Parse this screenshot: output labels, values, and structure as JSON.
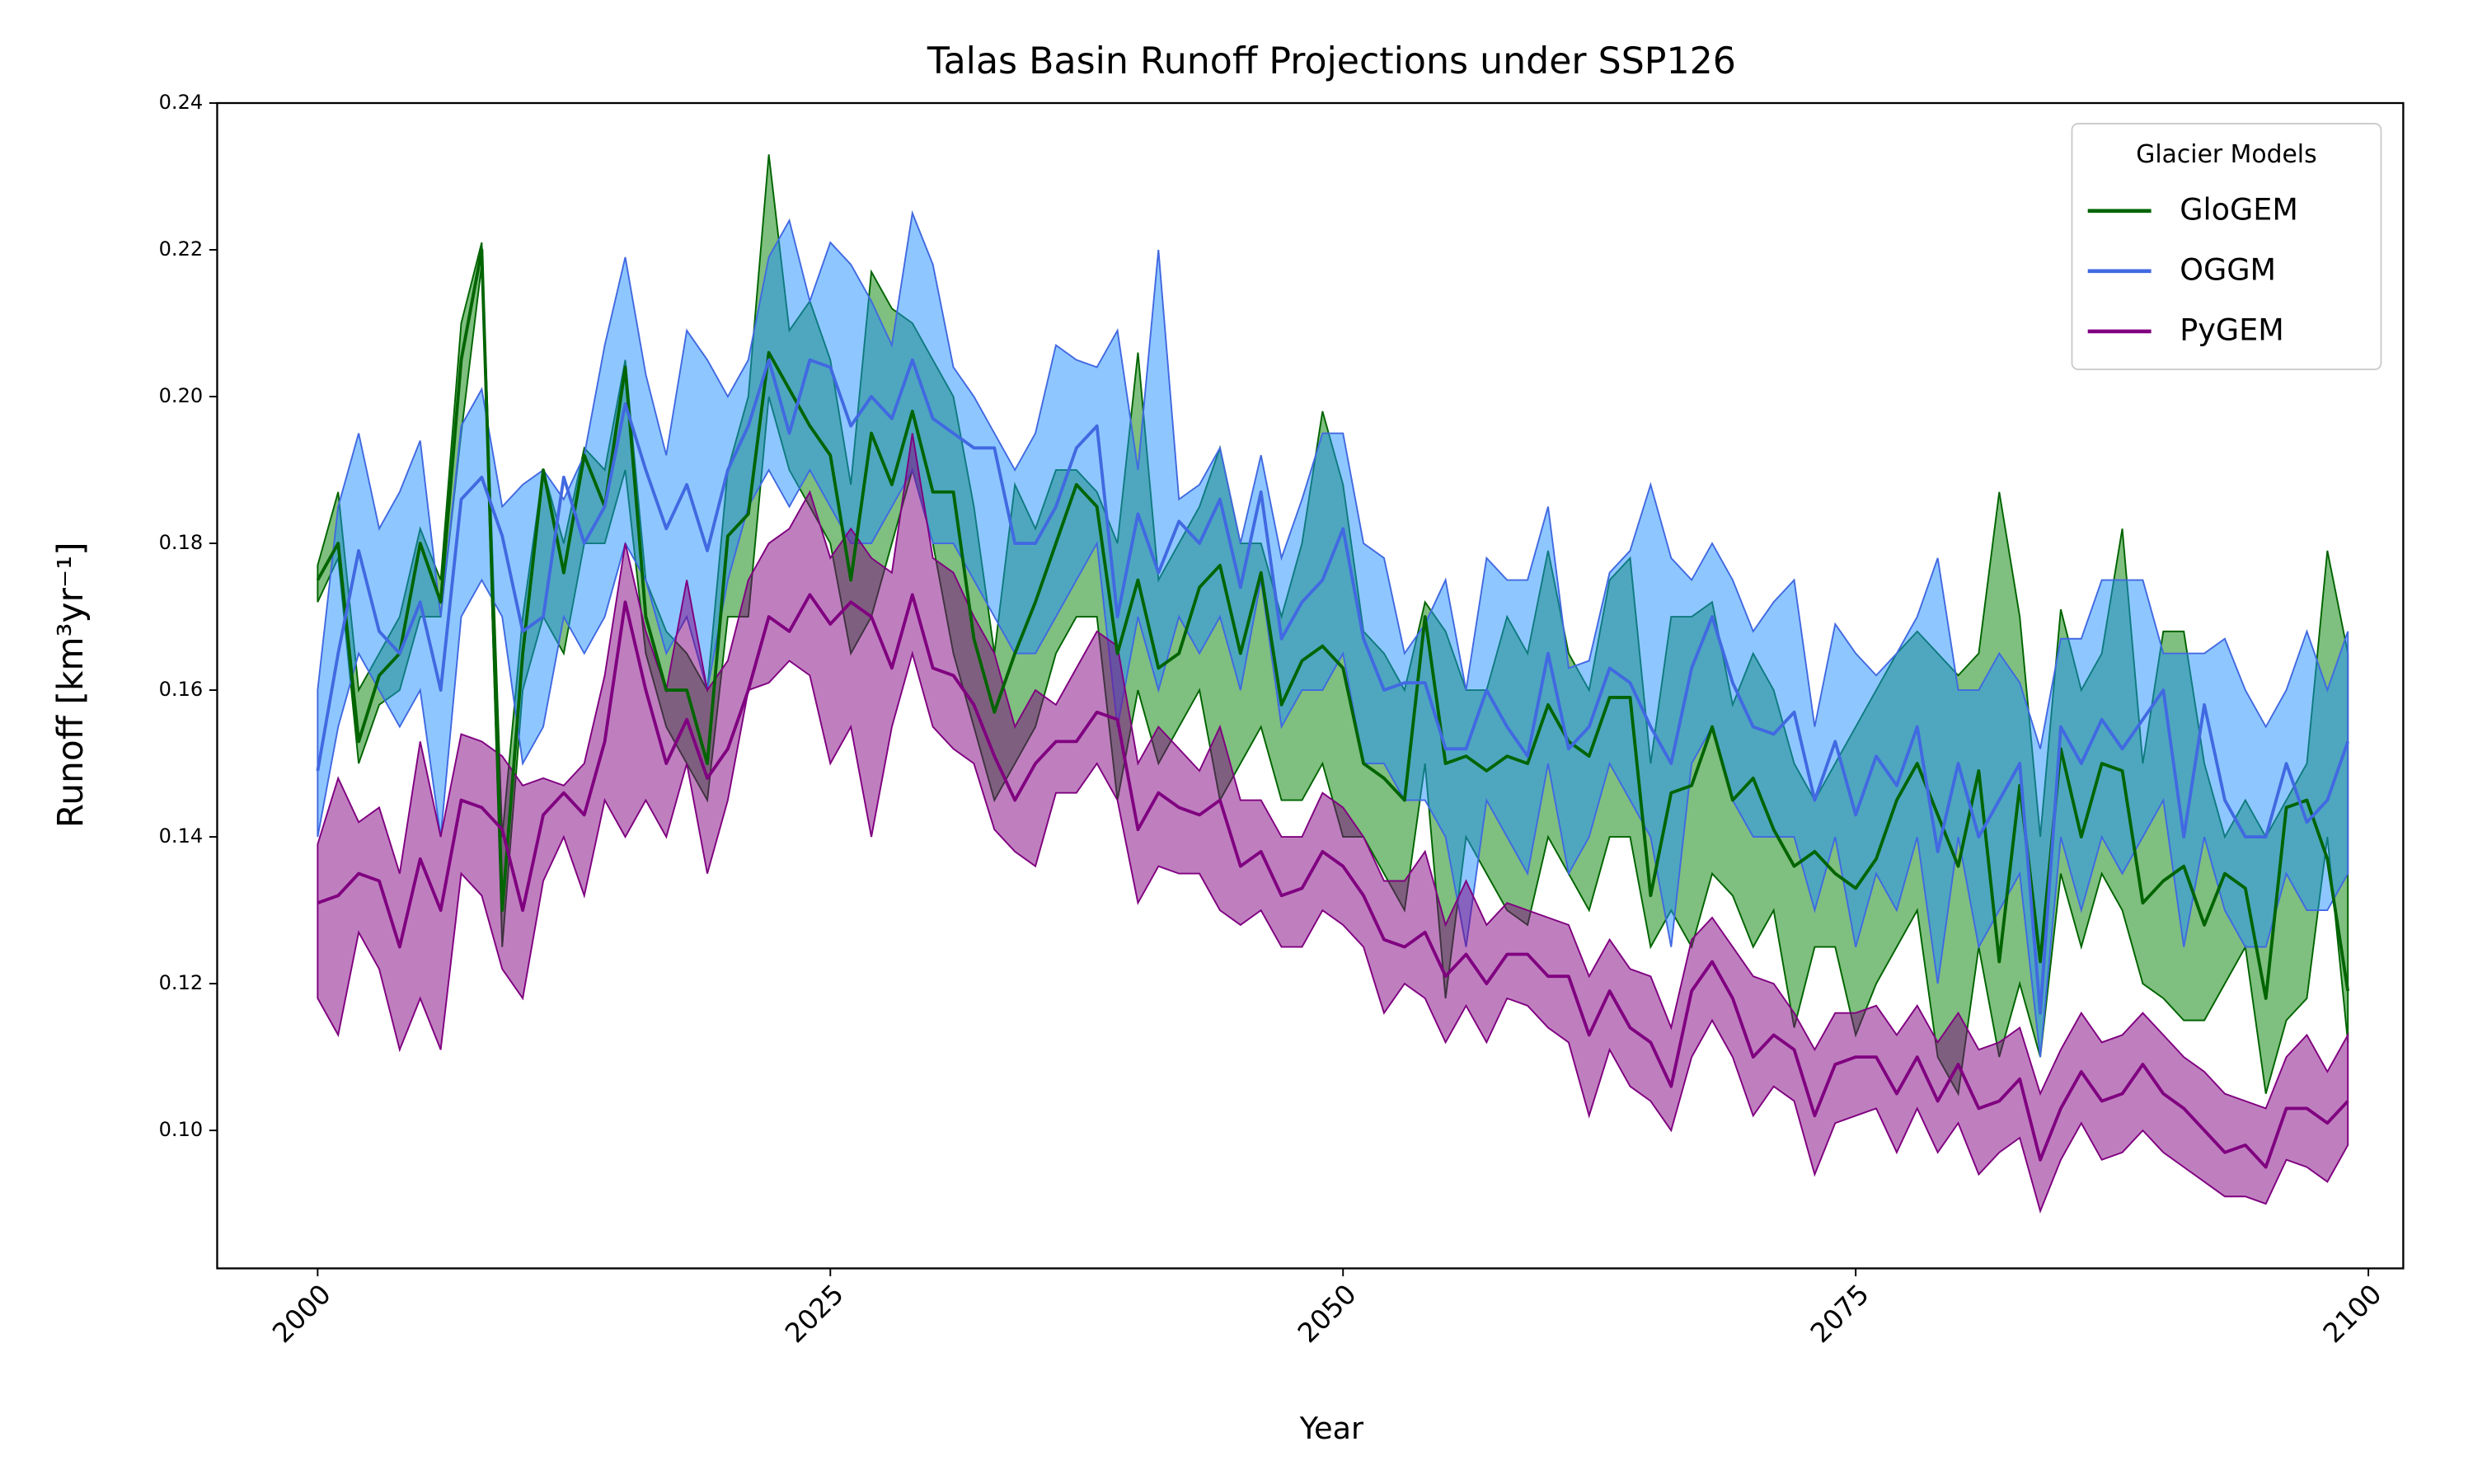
{
  "chart_data": {
    "type": "band-line",
    "title": "Talas Basin Runoff Projections under SSP126",
    "xlabel": "Year",
    "ylabel": "Runoff [km³yr⁻¹]",
    "legend_title": "Glacier Models",
    "legend_loc": "upper right",
    "xlim": [
      1995.1,
      2101.7
    ],
    "ylim": [
      0.0812,
      0.24
    ],
    "xticks": [
      2000,
      2025,
      2050,
      2075,
      2100
    ],
    "yticks": [
      {
        "value": 0.1,
        "label": "0.10"
      },
      0.12,
      0.14,
      0.16,
      0.18,
      {
        "value": 0.2,
        "label": "0.20"
      },
      0.22,
      0.24
    ],
    "fill_opacity": 0.5,
    "x": [
      2000,
      2001,
      2002,
      2003,
      2004,
      2005,
      2006,
      2007,
      2008,
      2009,
      2010,
      2011,
      2012,
      2013,
      2014,
      2015,
      2016,
      2017,
      2018,
      2019,
      2020,
      2021,
      2022,
      2023,
      2024,
      2025,
      2026,
      2027,
      2028,
      2029,
      2030,
      2031,
      2032,
      2033,
      2034,
      2035,
      2036,
      2037,
      2038,
      2039,
      2040,
      2041,
      2042,
      2043,
      2044,
      2045,
      2046,
      2047,
      2048,
      2049,
      2050,
      2051,
      2052,
      2053,
      2054,
      2055,
      2056,
      2057,
      2058,
      2059,
      2060,
      2061,
      2062,
      2063,
      2064,
      2065,
      2066,
      2067,
      2068,
      2069,
      2070,
      2071,
      2072,
      2073,
      2074,
      2075,
      2076,
      2077,
      2078,
      2079,
      2080,
      2081,
      2082,
      2083,
      2084,
      2085,
      2086,
      2087,
      2088,
      2089,
      2090,
      2091,
      2092,
      2093,
      2094,
      2095,
      2096,
      2097,
      2098,
      2099
    ],
    "series": [
      {
        "name": "GloGEM",
        "color": "#006400",
        "fill_color": "#008000",
        "values": [
          0.175,
          0.18,
          0.153,
          0.162,
          0.165,
          0.18,
          0.172,
          0.205,
          0.22,
          0.13,
          0.165,
          0.19,
          0.176,
          0.192,
          0.185,
          0.204,
          0.17,
          0.16,
          0.16,
          0.15,
          0.181,
          0.184,
          0.206,
          0.201,
          0.196,
          0.192,
          0.175,
          0.195,
          0.188,
          0.198,
          0.187,
          0.187,
          0.167,
          0.157,
          0.165,
          0.172,
          0.18,
          0.188,
          0.185,
          0.165,
          0.175,
          0.163,
          0.165,
          0.174,
          0.177,
          0.165,
          0.176,
          0.158,
          0.164,
          0.166,
          0.163,
          0.15,
          0.148,
          0.145,
          0.17,
          0.15,
          0.151,
          0.149,
          0.151,
          0.15,
          0.158,
          0.153,
          0.151,
          0.159,
          0.159,
          0.132,
          0.146,
          0.147,
          0.155,
          0.145,
          0.148,
          0.141,
          0.136,
          0.138,
          0.135,
          0.133,
          0.137,
          0.145,
          0.15,
          0.143,
          0.136,
          0.149,
          0.123,
          0.147,
          0.123,
          0.152,
          0.14,
          0.15,
          0.149,
          0.131,
          0.134,
          0.136,
          0.128,
          0.135,
          0.133,
          0.118,
          0.144,
          0.145,
          0.137,
          0.119
        ],
        "upper": [
          0.177,
          0.187,
          0.16,
          0.165,
          0.17,
          0.182,
          0.175,
          0.21,
          0.221,
          0.14,
          0.17,
          0.19,
          0.18,
          0.193,
          0.19,
          0.205,
          0.175,
          0.168,
          0.165,
          0.16,
          0.19,
          0.2,
          0.233,
          0.209,
          0.213,
          0.205,
          0.188,
          0.217,
          0.212,
          0.21,
          0.205,
          0.2,
          0.185,
          0.165,
          0.188,
          0.182,
          0.19,
          0.19,
          0.187,
          0.18,
          0.206,
          0.175,
          0.18,
          0.185,
          0.193,
          0.18,
          0.18,
          0.17,
          0.18,
          0.198,
          0.188,
          0.168,
          0.165,
          0.16,
          0.172,
          0.168,
          0.16,
          0.16,
          0.17,
          0.165,
          0.179,
          0.165,
          0.16,
          0.175,
          0.178,
          0.15,
          0.17,
          0.17,
          0.172,
          0.158,
          0.165,
          0.16,
          0.15,
          0.145,
          0.15,
          0.155,
          0.16,
          0.165,
          0.168,
          0.165,
          0.162,
          0.165,
          0.187,
          0.17,
          0.14,
          0.171,
          0.16,
          0.165,
          0.182,
          0.15,
          0.168,
          0.168,
          0.15,
          0.14,
          0.145,
          0.14,
          0.145,
          0.15,
          0.179,
          0.165
        ],
        "lower": [
          0.172,
          0.178,
          0.15,
          0.158,
          0.16,
          0.17,
          0.17,
          0.195,
          0.218,
          0.125,
          0.16,
          0.17,
          0.165,
          0.18,
          0.18,
          0.19,
          0.165,
          0.155,
          0.15,
          0.145,
          0.17,
          0.17,
          0.2,
          0.19,
          0.185,
          0.18,
          0.165,
          0.17,
          0.18,
          0.19,
          0.18,
          0.165,
          0.155,
          0.145,
          0.15,
          0.155,
          0.165,
          0.17,
          0.17,
          0.145,
          0.16,
          0.15,
          0.155,
          0.16,
          0.145,
          0.15,
          0.155,
          0.145,
          0.145,
          0.15,
          0.14,
          0.14,
          0.135,
          0.13,
          0.15,
          0.118,
          0.14,
          0.135,
          0.13,
          0.128,
          0.14,
          0.135,
          0.13,
          0.14,
          0.14,
          0.125,
          0.13,
          0.125,
          0.135,
          0.132,
          0.125,
          0.13,
          0.114,
          0.125,
          0.125,
          0.113,
          0.12,
          0.125,
          0.13,
          0.11,
          0.105,
          0.125,
          0.11,
          0.12,
          0.11,
          0.135,
          0.125,
          0.135,
          0.13,
          0.12,
          0.118,
          0.115,
          0.115,
          0.12,
          0.125,
          0.105,
          0.115,
          0.118,
          0.14,
          0.112
        ]
      },
      {
        "name": "OGGM",
        "color": "#4169e1",
        "fill_color": "#1e90ff",
        "values": [
          0.149,
          0.165,
          0.179,
          0.168,
          0.165,
          0.172,
          0.16,
          0.186,
          0.189,
          0.181,
          0.168,
          0.17,
          0.189,
          0.18,
          0.185,
          0.199,
          0.19,
          0.182,
          0.188,
          0.179,
          0.19,
          0.196,
          0.205,
          0.195,
          0.205,
          0.204,
          0.196,
          0.2,
          0.197,
          0.205,
          0.197,
          0.195,
          0.193,
          0.193,
          0.18,
          0.18,
          0.185,
          0.193,
          0.196,
          0.17,
          0.184,
          0.176,
          0.183,
          0.18,
          0.186,
          0.174,
          0.187,
          0.167,
          0.172,
          0.175,
          0.182,
          0.167,
          0.16,
          0.161,
          0.161,
          0.152,
          0.152,
          0.16,
          0.155,
          0.151,
          0.165,
          0.152,
          0.155,
          0.163,
          0.161,
          0.155,
          0.15,
          0.163,
          0.17,
          0.161,
          0.155,
          0.154,
          0.157,
          0.145,
          0.153,
          0.143,
          0.151,
          0.147,
          0.155,
          0.138,
          0.15,
          0.14,
          0.145,
          0.15,
          0.116,
          0.155,
          0.15,
          0.156,
          0.152,
          0.156,
          0.16,
          0.14,
          0.158,
          0.145,
          0.14,
          0.14,
          0.15,
          0.142,
          0.145,
          0.153
        ],
        "upper": [
          0.16,
          0.185,
          0.195,
          0.182,
          0.187,
          0.194,
          0.17,
          0.196,
          0.201,
          0.185,
          0.188,
          0.19,
          0.186,
          0.192,
          0.207,
          0.219,
          0.203,
          0.192,
          0.209,
          0.205,
          0.2,
          0.205,
          0.219,
          0.224,
          0.213,
          0.221,
          0.218,
          0.213,
          0.207,
          0.225,
          0.218,
          0.204,
          0.2,
          0.195,
          0.19,
          0.195,
          0.207,
          0.205,
          0.204,
          0.209,
          0.19,
          0.22,
          0.186,
          0.188,
          0.193,
          0.18,
          0.192,
          0.178,
          0.186,
          0.195,
          0.195,
          0.18,
          0.178,
          0.165,
          0.169,
          0.175,
          0.16,
          0.178,
          0.175,
          0.175,
          0.185,
          0.163,
          0.164,
          0.176,
          0.179,
          0.188,
          0.178,
          0.175,
          0.18,
          0.175,
          0.168,
          0.172,
          0.175,
          0.155,
          0.169,
          0.165,
          0.162,
          0.165,
          0.17,
          0.178,
          0.16,
          0.16,
          0.165,
          0.161,
          0.152,
          0.167,
          0.167,
          0.175,
          0.175,
          0.175,
          0.165,
          0.165,
          0.165,
          0.167,
          0.16,
          0.155,
          0.16,
          0.168,
          0.16,
          0.168
        ],
        "lower": [
          0.14,
          0.155,
          0.165,
          0.16,
          0.155,
          0.16,
          0.14,
          0.17,
          0.175,
          0.17,
          0.15,
          0.155,
          0.17,
          0.165,
          0.17,
          0.18,
          0.175,
          0.165,
          0.17,
          0.16,
          0.175,
          0.185,
          0.19,
          0.185,
          0.19,
          0.185,
          0.18,
          0.18,
          0.185,
          0.19,
          0.18,
          0.18,
          0.175,
          0.17,
          0.165,
          0.165,
          0.17,
          0.175,
          0.18,
          0.155,
          0.17,
          0.16,
          0.17,
          0.165,
          0.17,
          0.16,
          0.175,
          0.155,
          0.16,
          0.16,
          0.165,
          0.15,
          0.15,
          0.145,
          0.145,
          0.14,
          0.125,
          0.145,
          0.14,
          0.135,
          0.15,
          0.135,
          0.14,
          0.15,
          0.145,
          0.14,
          0.125,
          0.15,
          0.155,
          0.145,
          0.14,
          0.14,
          0.14,
          0.13,
          0.14,
          0.125,
          0.135,
          0.13,
          0.14,
          0.12,
          0.14,
          0.125,
          0.13,
          0.135,
          0.11,
          0.14,
          0.13,
          0.14,
          0.135,
          0.14,
          0.145,
          0.125,
          0.14,
          0.13,
          0.125,
          0.125,
          0.135,
          0.13,
          0.13,
          0.135
        ]
      },
      {
        "name": "PyGEM",
        "color": "#800080",
        "fill_color": "#800080",
        "values": [
          0.131,
          0.132,
          0.135,
          0.134,
          0.125,
          0.137,
          0.13,
          0.145,
          0.144,
          0.141,
          0.13,
          0.143,
          0.146,
          0.143,
          0.153,
          0.172,
          0.16,
          0.15,
          0.156,
          0.148,
          0.152,
          0.16,
          0.17,
          0.168,
          0.173,
          0.169,
          0.172,
          0.17,
          0.163,
          0.173,
          0.163,
          0.162,
          0.158,
          0.151,
          0.145,
          0.15,
          0.153,
          0.153,
          0.157,
          0.156,
          0.141,
          0.146,
          0.144,
          0.143,
          0.145,
          0.136,
          0.138,
          0.132,
          0.133,
          0.138,
          0.136,
          0.132,
          0.126,
          0.125,
          0.127,
          0.121,
          0.124,
          0.12,
          0.124,
          0.124,
          0.121,
          0.121,
          0.113,
          0.119,
          0.114,
          0.112,
          0.106,
          0.119,
          0.123,
          0.118,
          0.11,
          0.113,
          0.111,
          0.102,
          0.109,
          0.11,
          0.11,
          0.105,
          0.11,
          0.104,
          0.109,
          0.103,
          0.104,
          0.107,
          0.096,
          0.103,
          0.108,
          0.104,
          0.105,
          0.109,
          0.105,
          0.103,
          0.1,
          0.097,
          0.098,
          0.095,
          0.103,
          0.103,
          0.101,
          0.104
        ],
        "upper": [
          0.139,
          0.148,
          0.142,
          0.144,
          0.135,
          0.153,
          0.14,
          0.154,
          0.153,
          0.151,
          0.147,
          0.148,
          0.147,
          0.15,
          0.162,
          0.18,
          0.168,
          0.16,
          0.175,
          0.16,
          0.164,
          0.175,
          0.18,
          0.182,
          0.187,
          0.178,
          0.182,
          0.178,
          0.176,
          0.195,
          0.178,
          0.176,
          0.17,
          0.165,
          0.155,
          0.16,
          0.158,
          0.163,
          0.168,
          0.166,
          0.15,
          0.155,
          0.152,
          0.149,
          0.155,
          0.145,
          0.145,
          0.14,
          0.14,
          0.146,
          0.144,
          0.14,
          0.134,
          0.134,
          0.138,
          0.128,
          0.134,
          0.128,
          0.131,
          0.13,
          0.129,
          0.128,
          0.121,
          0.126,
          0.122,
          0.121,
          0.114,
          0.126,
          0.129,
          0.125,
          0.121,
          0.12,
          0.116,
          0.111,
          0.116,
          0.116,
          0.117,
          0.113,
          0.117,
          0.112,
          0.116,
          0.111,
          0.112,
          0.114,
          0.105,
          0.111,
          0.116,
          0.112,
          0.113,
          0.116,
          0.113,
          0.11,
          0.108,
          0.105,
          0.104,
          0.103,
          0.11,
          0.113,
          0.108,
          0.113
        ],
        "lower": [
          0.118,
          0.113,
          0.127,
          0.122,
          0.111,
          0.118,
          0.111,
          0.135,
          0.132,
          0.122,
          0.118,
          0.134,
          0.14,
          0.132,
          0.145,
          0.14,
          0.145,
          0.14,
          0.15,
          0.135,
          0.145,
          0.16,
          0.161,
          0.164,
          0.162,
          0.15,
          0.155,
          0.14,
          0.155,
          0.165,
          0.155,
          0.152,
          0.15,
          0.141,
          0.138,
          0.136,
          0.146,
          0.146,
          0.15,
          0.145,
          0.131,
          0.136,
          0.135,
          0.135,
          0.13,
          0.128,
          0.13,
          0.125,
          0.125,
          0.13,
          0.128,
          0.125,
          0.116,
          0.12,
          0.118,
          0.112,
          0.117,
          0.112,
          0.118,
          0.117,
          0.114,
          0.112,
          0.102,
          0.111,
          0.106,
          0.104,
          0.1,
          0.11,
          0.115,
          0.11,
          0.102,
          0.106,
          0.104,
          0.094,
          0.101,
          0.102,
          0.103,
          0.097,
          0.103,
          0.097,
          0.101,
          0.094,
          0.097,
          0.099,
          0.089,
          0.096,
          0.101,
          0.096,
          0.097,
          0.1,
          0.097,
          0.095,
          0.093,
          0.091,
          0.091,
          0.09,
          0.096,
          0.095,
          0.093,
          0.098
        ]
      }
    ]
  }
}
